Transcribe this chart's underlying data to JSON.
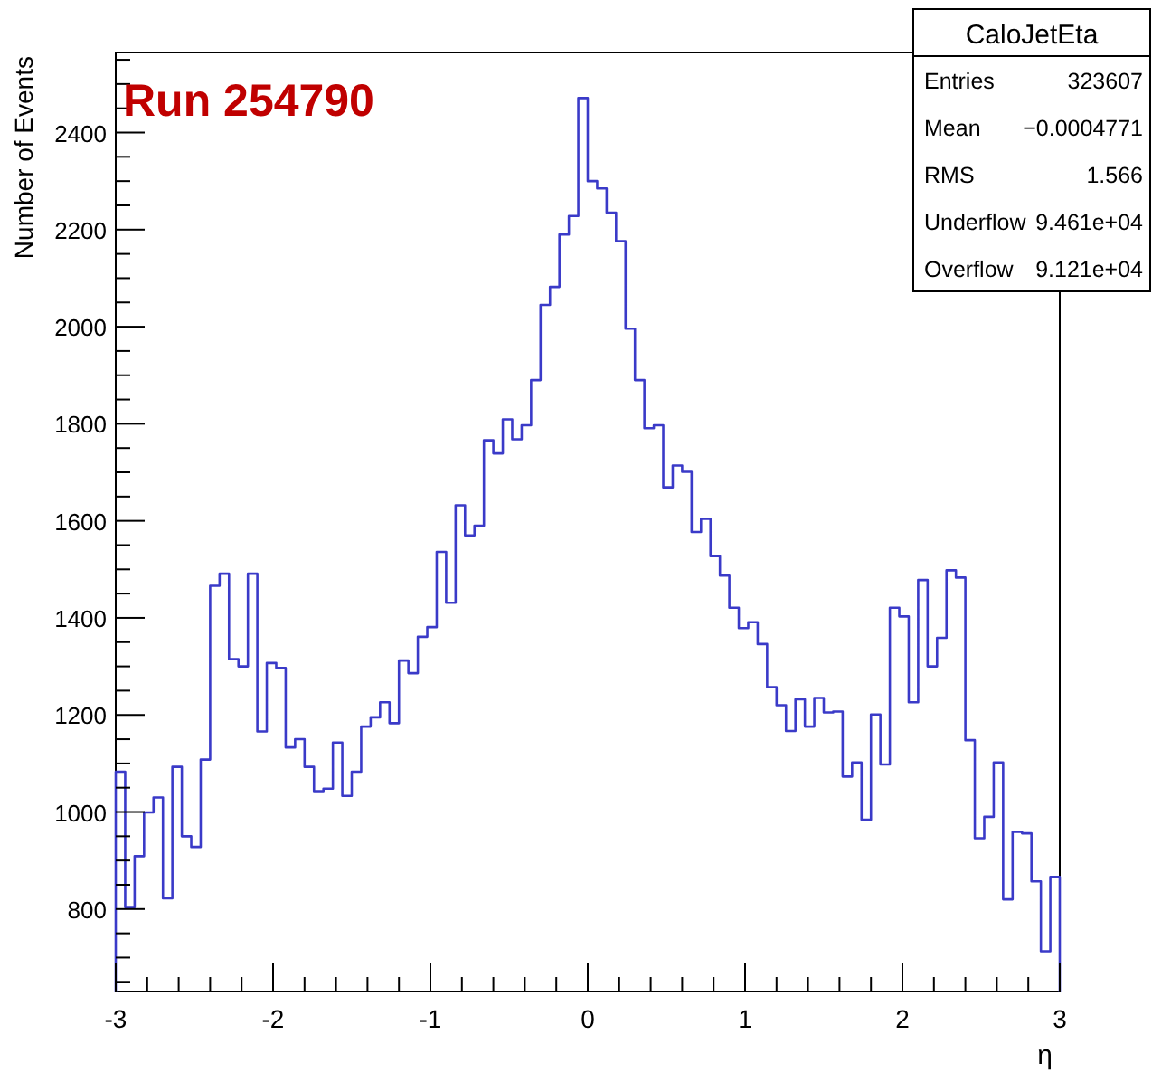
{
  "chart_data": {
    "type": "histogram",
    "xlabel": "η",
    "ylabel": "Number of Events",
    "color": "#3a3ac8",
    "annotations": [
      "Run 254790",
      "CaloJetEta",
      "Entries",
      "323607",
      "Mean",
      "−0.0004771",
      "RMS",
      "1.566",
      "Underflow",
      "9.461e+04",
      "Overflow",
      "9.121e+04"
    ],
    "bins": [
      -3,
      -2.94,
      -2.88,
      -2.82,
      -2.76,
      -2.7,
      -2.64,
      -2.58,
      -2.52,
      -2.46,
      -2.4,
      -2.34,
      -2.28,
      -2.22,
      -2.16,
      -2.1,
      -2.04,
      -1.98,
      -1.92,
      -1.86,
      -1.8,
      -1.74,
      -1.68,
      -1.62,
      -1.56,
      -1.5,
      -1.44,
      -1.38,
      -1.32,
      -1.26,
      -1.2,
      -1.14,
      -1.08,
      -1.02,
      -0.96,
      -0.9,
      -0.84,
      -0.78,
      -0.72,
      -0.66,
      -0.6,
      -0.54,
      -0.48,
      -0.42,
      -0.36,
      -0.3,
      -0.24,
      -0.18,
      -0.12,
      -0.06,
      0,
      0.06,
      0.12,
      0.18,
      0.24,
      0.3,
      0.36,
      0.42,
      0.48,
      0.54,
      0.6,
      0.66,
      0.72,
      0.78,
      0.84,
      0.9,
      0.96,
      1.02,
      1.08,
      1.14,
      1.2,
      1.26,
      1.32,
      1.38,
      1.44,
      1.5,
      1.56,
      1.62,
      1.68,
      1.74,
      1.8,
      1.86,
      1.92,
      1.98,
      2.04,
      2.1,
      2.16,
      2.22,
      2.28,
      2.34,
      2.4,
      2.46,
      2.52,
      2.58,
      2.64,
      2.7,
      2.76,
      2.82,
      2.88,
      2.94,
      3
    ],
    "values": [
      1083,
      804,
      909,
      999,
      1030,
      822,
      1093,
      950,
      928,
      1108,
      1466,
      1491,
      1315,
      1300,
      1491,
      1166,
      1307,
      1297,
      1133,
      1150,
      1093,
      1043,
      1048,
      1143,
      1033,
      1083,
      1176,
      1195,
      1226,
      1183,
      1312,
      1286,
      1361,
      1381,
      1536,
      1431,
      1632,
      1570,
      1590,
      1766,
      1739,
      1809,
      1768,
      1797,
      1890,
      2045,
      2082,
      2190,
      2228,
      2471,
      2300,
      2285,
      2235,
      2176,
      1996,
      1890,
      1791,
      1797,
      1669,
      1714,
      1701,
      1577,
      1604,
      1527,
      1487,
      1421,
      1379,
      1391,
      1346,
      1257,
      1220,
      1167,
      1232,
      1176,
      1235,
      1205,
      1207,
      1073,
      1102,
      984,
      1201,
      1098,
      1421,
      1403,
      1226,
      1478,
      1300,
      1359,
      1498,
      1483,
      1148,
      946,
      990,
      1102,
      820,
      959,
      956,
      857,
      713,
      866
    ],
    "xlim": [
      -3,
      3
    ],
    "ylim": [
      630,
      2565
    ],
    "xticks": [
      -3,
      {
        "value": -2.8,
        "label": null
      },
      {
        "value": -2.6,
        "label": null
      },
      {
        "value": -2.4,
        "label": null
      },
      {
        "value": -2.2,
        "label": null
      },
      -2,
      {
        "value": -1.8,
        "label": null
      },
      {
        "value": -1.6,
        "label": null
      },
      {
        "value": -1.4,
        "label": null
      },
      {
        "value": -1.2,
        "label": null
      },
      -1,
      {
        "value": -0.8,
        "label": null
      },
      {
        "value": -0.6,
        "label": null
      },
      {
        "value": -0.4,
        "label": null
      },
      {
        "value": -0.2,
        "label": null
      },
      0,
      {
        "value": 0.2,
        "label": null
      },
      {
        "value": 0.4,
        "label": null
      },
      {
        "value": 0.6,
        "label": null
      },
      {
        "value": 0.8,
        "label": null
      },
      1,
      {
        "value": 1.2,
        "label": null
      },
      {
        "value": 1.4,
        "label": null
      },
      {
        "value": 1.6,
        "label": null
      },
      {
        "value": 1.8,
        "label": null
      },
      2,
      {
        "value": 2.2,
        "label": null
      },
      {
        "value": 2.4,
        "label": null
      },
      {
        "value": 2.6,
        "label": null
      },
      {
        "value": 2.8,
        "label": null
      },
      3
    ],
    "yticks": [
      {
        "value": 650,
        "label": null
      },
      {
        "value": 700,
        "label": null
      },
      {
        "value": 750,
        "label": null
      },
      800,
      {
        "value": 850,
        "label": null
      },
      {
        "value": 900,
        "label": null
      },
      {
        "value": 950,
        "label": null
      },
      1000,
      {
        "value": 1050,
        "label": null
      },
      {
        "value": 1100,
        "label": null
      },
      {
        "value": 1150,
        "label": null
      },
      1200,
      {
        "value": 1250,
        "label": null
      },
      {
        "value": 1300,
        "label": null
      },
      {
        "value": 1350,
        "label": null
      },
      1400,
      {
        "value": 1450,
        "label": null
      },
      {
        "value": 1500,
        "label": null
      },
      {
        "value": 1550,
        "label": null
      },
      1600,
      {
        "value": 1650,
        "label": null
      },
      {
        "value": 1700,
        "label": null
      },
      {
        "value": 1750,
        "label": null
      },
      1800,
      {
        "value": 1850,
        "label": null
      },
      {
        "value": 1900,
        "label": null
      },
      {
        "value": 1950,
        "label": null
      },
      2000,
      {
        "value": 2050,
        "label": null
      },
      {
        "value": 2100,
        "label": null
      },
      {
        "value": 2150,
        "label": null
      },
      2200,
      {
        "value": 2250,
        "label": null
      },
      {
        "value": 2300,
        "label": null
      },
      {
        "value": 2350,
        "label": null
      },
      2400,
      {
        "value": 2450,
        "label": null
      },
      {
        "value": 2500,
        "label": null
      },
      {
        "value": 2550,
        "label": null
      }
    ]
  }
}
